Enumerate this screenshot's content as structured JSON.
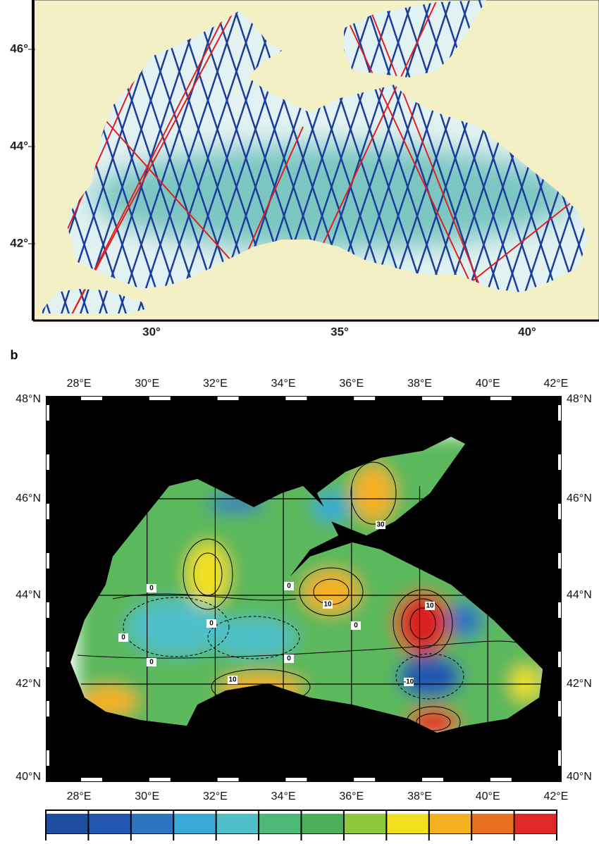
{
  "panel_a": {
    "lat_labels": [
      "46°",
      "44°",
      "42°"
    ],
    "lon_labels": [
      "30°",
      "35°",
      "40°"
    ]
  },
  "panel_b": {
    "label": "b",
    "lon_labels": [
      "28°E",
      "30°E",
      "32°E",
      "34°E",
      "36°E",
      "38°E",
      "40°E",
      "42°E"
    ],
    "lat_labels": [
      "48°N",
      "46°N",
      "44°N",
      "42°N",
      "40°N"
    ],
    "contour_labels": [
      "0",
      "0",
      "0",
      "0",
      "0",
      "0",
      "10",
      "10",
      "10",
      "-10",
      "30",
      "0"
    ],
    "colorbar_colors": [
      "#1f4ea0",
      "#2256b0",
      "#2f74c0",
      "#36a9d8",
      "#4fc0c8",
      "#4db878",
      "#4eae5a",
      "#8cc83c",
      "#f0e020",
      "#f5b020",
      "#e87020",
      "#e02828"
    ]
  }
}
